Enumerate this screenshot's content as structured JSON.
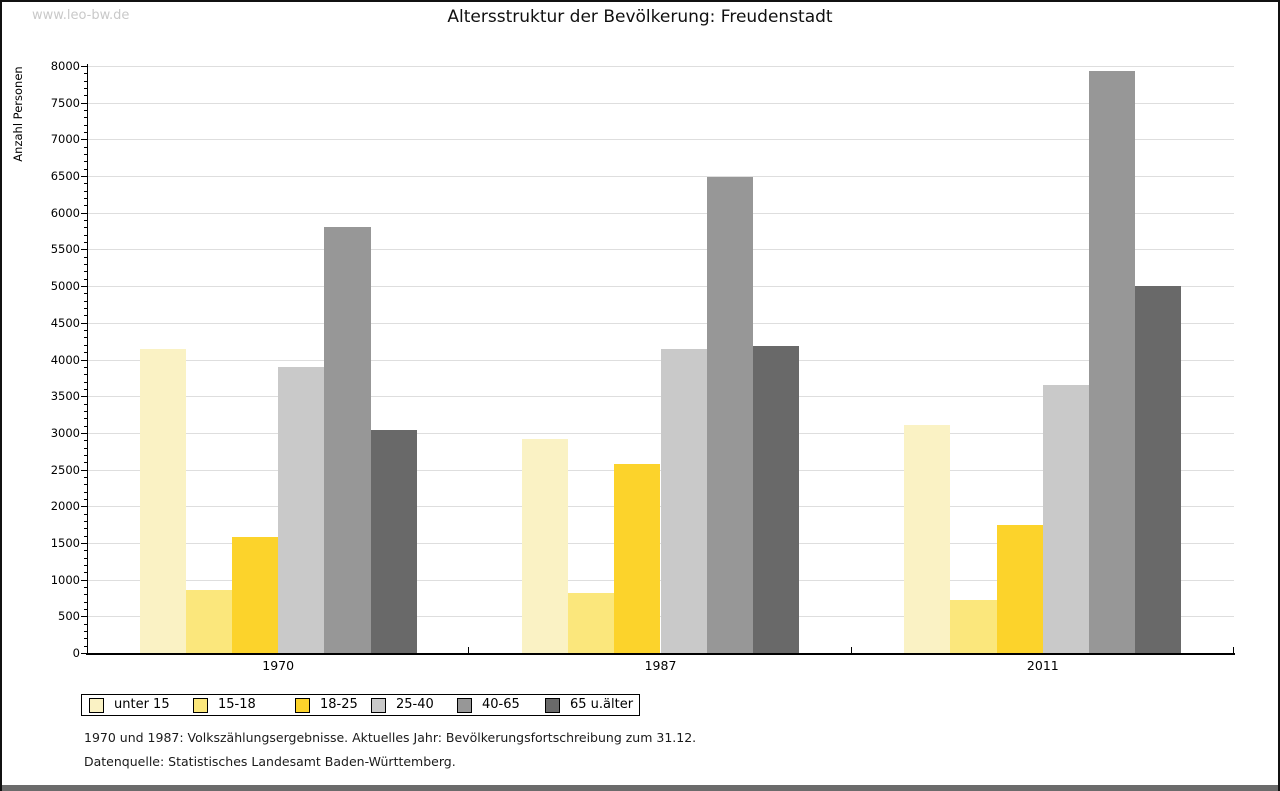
{
  "watermark": "www.leo-bw.de",
  "title": "Altersstruktur der Bevölkerung: Freudenstadt",
  "chart_data": {
    "type": "bar",
    "title": "Altersstruktur der Bevölkerung: Freudenstadt",
    "xlabel": "",
    "ylabel": "Anzahl Personen",
    "ylim": [
      0,
      8000
    ],
    "ytick_step": 500,
    "minor_tick_step": 100,
    "yticks": [
      0,
      500,
      1000,
      1500,
      2000,
      2500,
      3000,
      3500,
      4000,
      4500,
      5000,
      5500,
      6000,
      6500,
      7000,
      7500,
      8000
    ],
    "grid": true,
    "legend_position": "bottom-left",
    "categories": [
      "1970",
      "1987",
      "2011"
    ],
    "series": [
      {
        "name": "unter 15",
        "color": "#FAF2C4",
        "values": [
          4140,
          2910,
          3110
        ]
      },
      {
        "name": "15-18",
        "color": "#FBE77C",
        "values": [
          860,
          820,
          720
        ]
      },
      {
        "name": "18-25",
        "color": "#FCD32B",
        "values": [
          1580,
          2580,
          1740
        ]
      },
      {
        "name": "25-40",
        "color": "#C9C9C9",
        "values": [
          3900,
          4150,
          3650
        ]
      },
      {
        "name": "40-65",
        "color": "#979797",
        "values": [
          5800,
          6490,
          7930
        ]
      },
      {
        "name": "65 u.älter",
        "color": "#696969",
        "values": [
          3040,
          4190,
          5000
        ]
      }
    ]
  },
  "footer": {
    "line1": "1970 und 1987: Volkszählungsergebnisse. Aktuelles Jahr: Bevölkerungsfortschreibung zum 31.12.",
    "line2": "Datenquelle: Statistisches Landesamt Baden-Württemberg."
  }
}
